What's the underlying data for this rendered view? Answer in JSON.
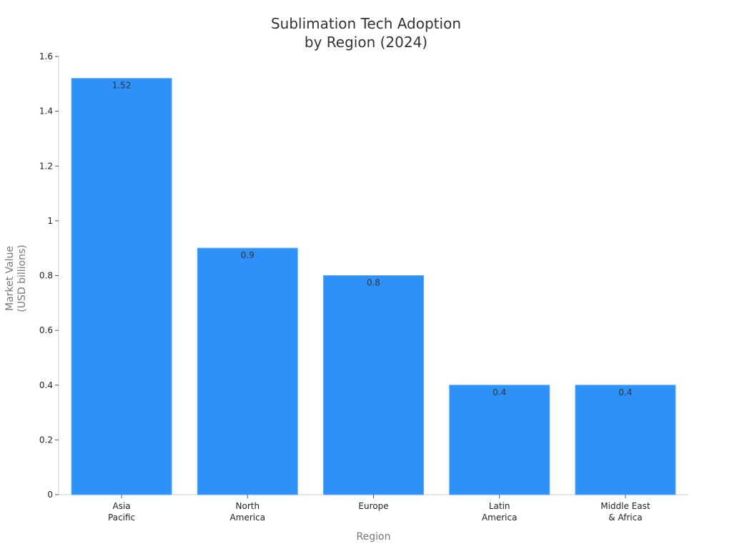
{
  "chart_data": {
    "type": "bar",
    "title": [
      "Sublimation Tech Adoption",
      "by Region (2024)"
    ],
    "xlabel": "Region",
    "ylabel": [
      "Market Value",
      "(USD billions)"
    ],
    "categories": [
      [
        "Asia",
        "Pacific"
      ],
      [
        "North",
        "America"
      ],
      [
        "Europe"
      ],
      [
        "Latin",
        "America"
      ],
      [
        "Middle East",
        "& Africa"
      ]
    ],
    "values": [
      1.52,
      0.9,
      0.8,
      0.4,
      0.4
    ],
    "data_labels": [
      "1.52",
      "0.9",
      "0.8",
      "0.4",
      "0.4"
    ],
    "ylim": [
      0,
      1.6
    ],
    "yticks": [
      0,
      0.2,
      0.4,
      0.6,
      0.8,
      1,
      1.2,
      1.4,
      1.6
    ],
    "ytick_labels": [
      "0",
      "0.2",
      "0.4",
      "0.6",
      "0.8",
      "1",
      "1.2",
      "1.4",
      "1.6"
    ],
    "grid": false,
    "legend": "none",
    "colors": {
      "bar": "#2e91f8",
      "bar_edge": "#5aaaf9",
      "axis": "#cccccc",
      "title": "#333333",
      "axis_title": "#777777"
    }
  }
}
